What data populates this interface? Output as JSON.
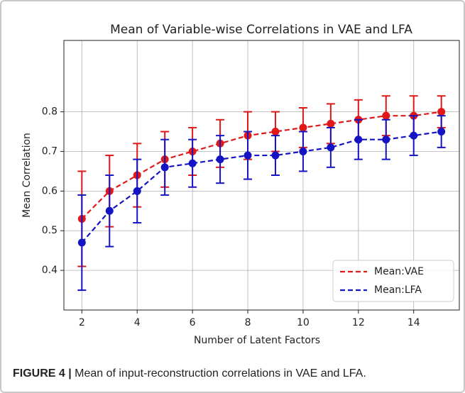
{
  "chart_data": {
    "type": "errorbar-line",
    "title": "Mean of Variable-wise Correlations in VAE and LFA",
    "xlabel": "Number of Latent Factors",
    "ylabel": "Mean Correlation",
    "x": [
      2,
      3,
      4,
      5,
      6,
      7,
      8,
      9,
      10,
      11,
      12,
      13,
      14,
      15
    ],
    "series": [
      {
        "name": "Mean:VAE",
        "color": "#e01818",
        "values": [
          0.53,
          0.6,
          0.64,
          0.68,
          0.7,
          0.72,
          0.74,
          0.75,
          0.76,
          0.77,
          0.78,
          0.79,
          0.79,
          0.8
        ],
        "errors": [
          0.12,
          0.09,
          0.08,
          0.07,
          0.06,
          0.06,
          0.06,
          0.05,
          0.05,
          0.05,
          0.05,
          0.05,
          0.05,
          0.04
        ]
      },
      {
        "name": "Mean:LFA",
        "color": "#1414c4",
        "values": [
          0.47,
          0.55,
          0.6,
          0.66,
          0.67,
          0.68,
          0.69,
          0.69,
          0.7,
          0.71,
          0.73,
          0.73,
          0.74,
          0.75
        ],
        "errors": [
          0.12,
          0.09,
          0.08,
          0.07,
          0.06,
          0.06,
          0.06,
          0.05,
          0.05,
          0.05,
          0.05,
          0.05,
          0.05,
          0.04
        ]
      }
    ],
    "xlim": [
      1.35,
      15.65
    ],
    "xticks": [
      2,
      4,
      6,
      8,
      10,
      12,
      14
    ],
    "ylim": [
      0.3,
      0.98
    ],
    "yticks": [
      0.4,
      0.5,
      0.6,
      0.7,
      0.8
    ],
    "grid": true,
    "legend": "lower right"
  },
  "caption": {
    "label": "FIGURE 4 |",
    "text": "Mean of input-reconstruction correlations in VAE and LFA."
  }
}
